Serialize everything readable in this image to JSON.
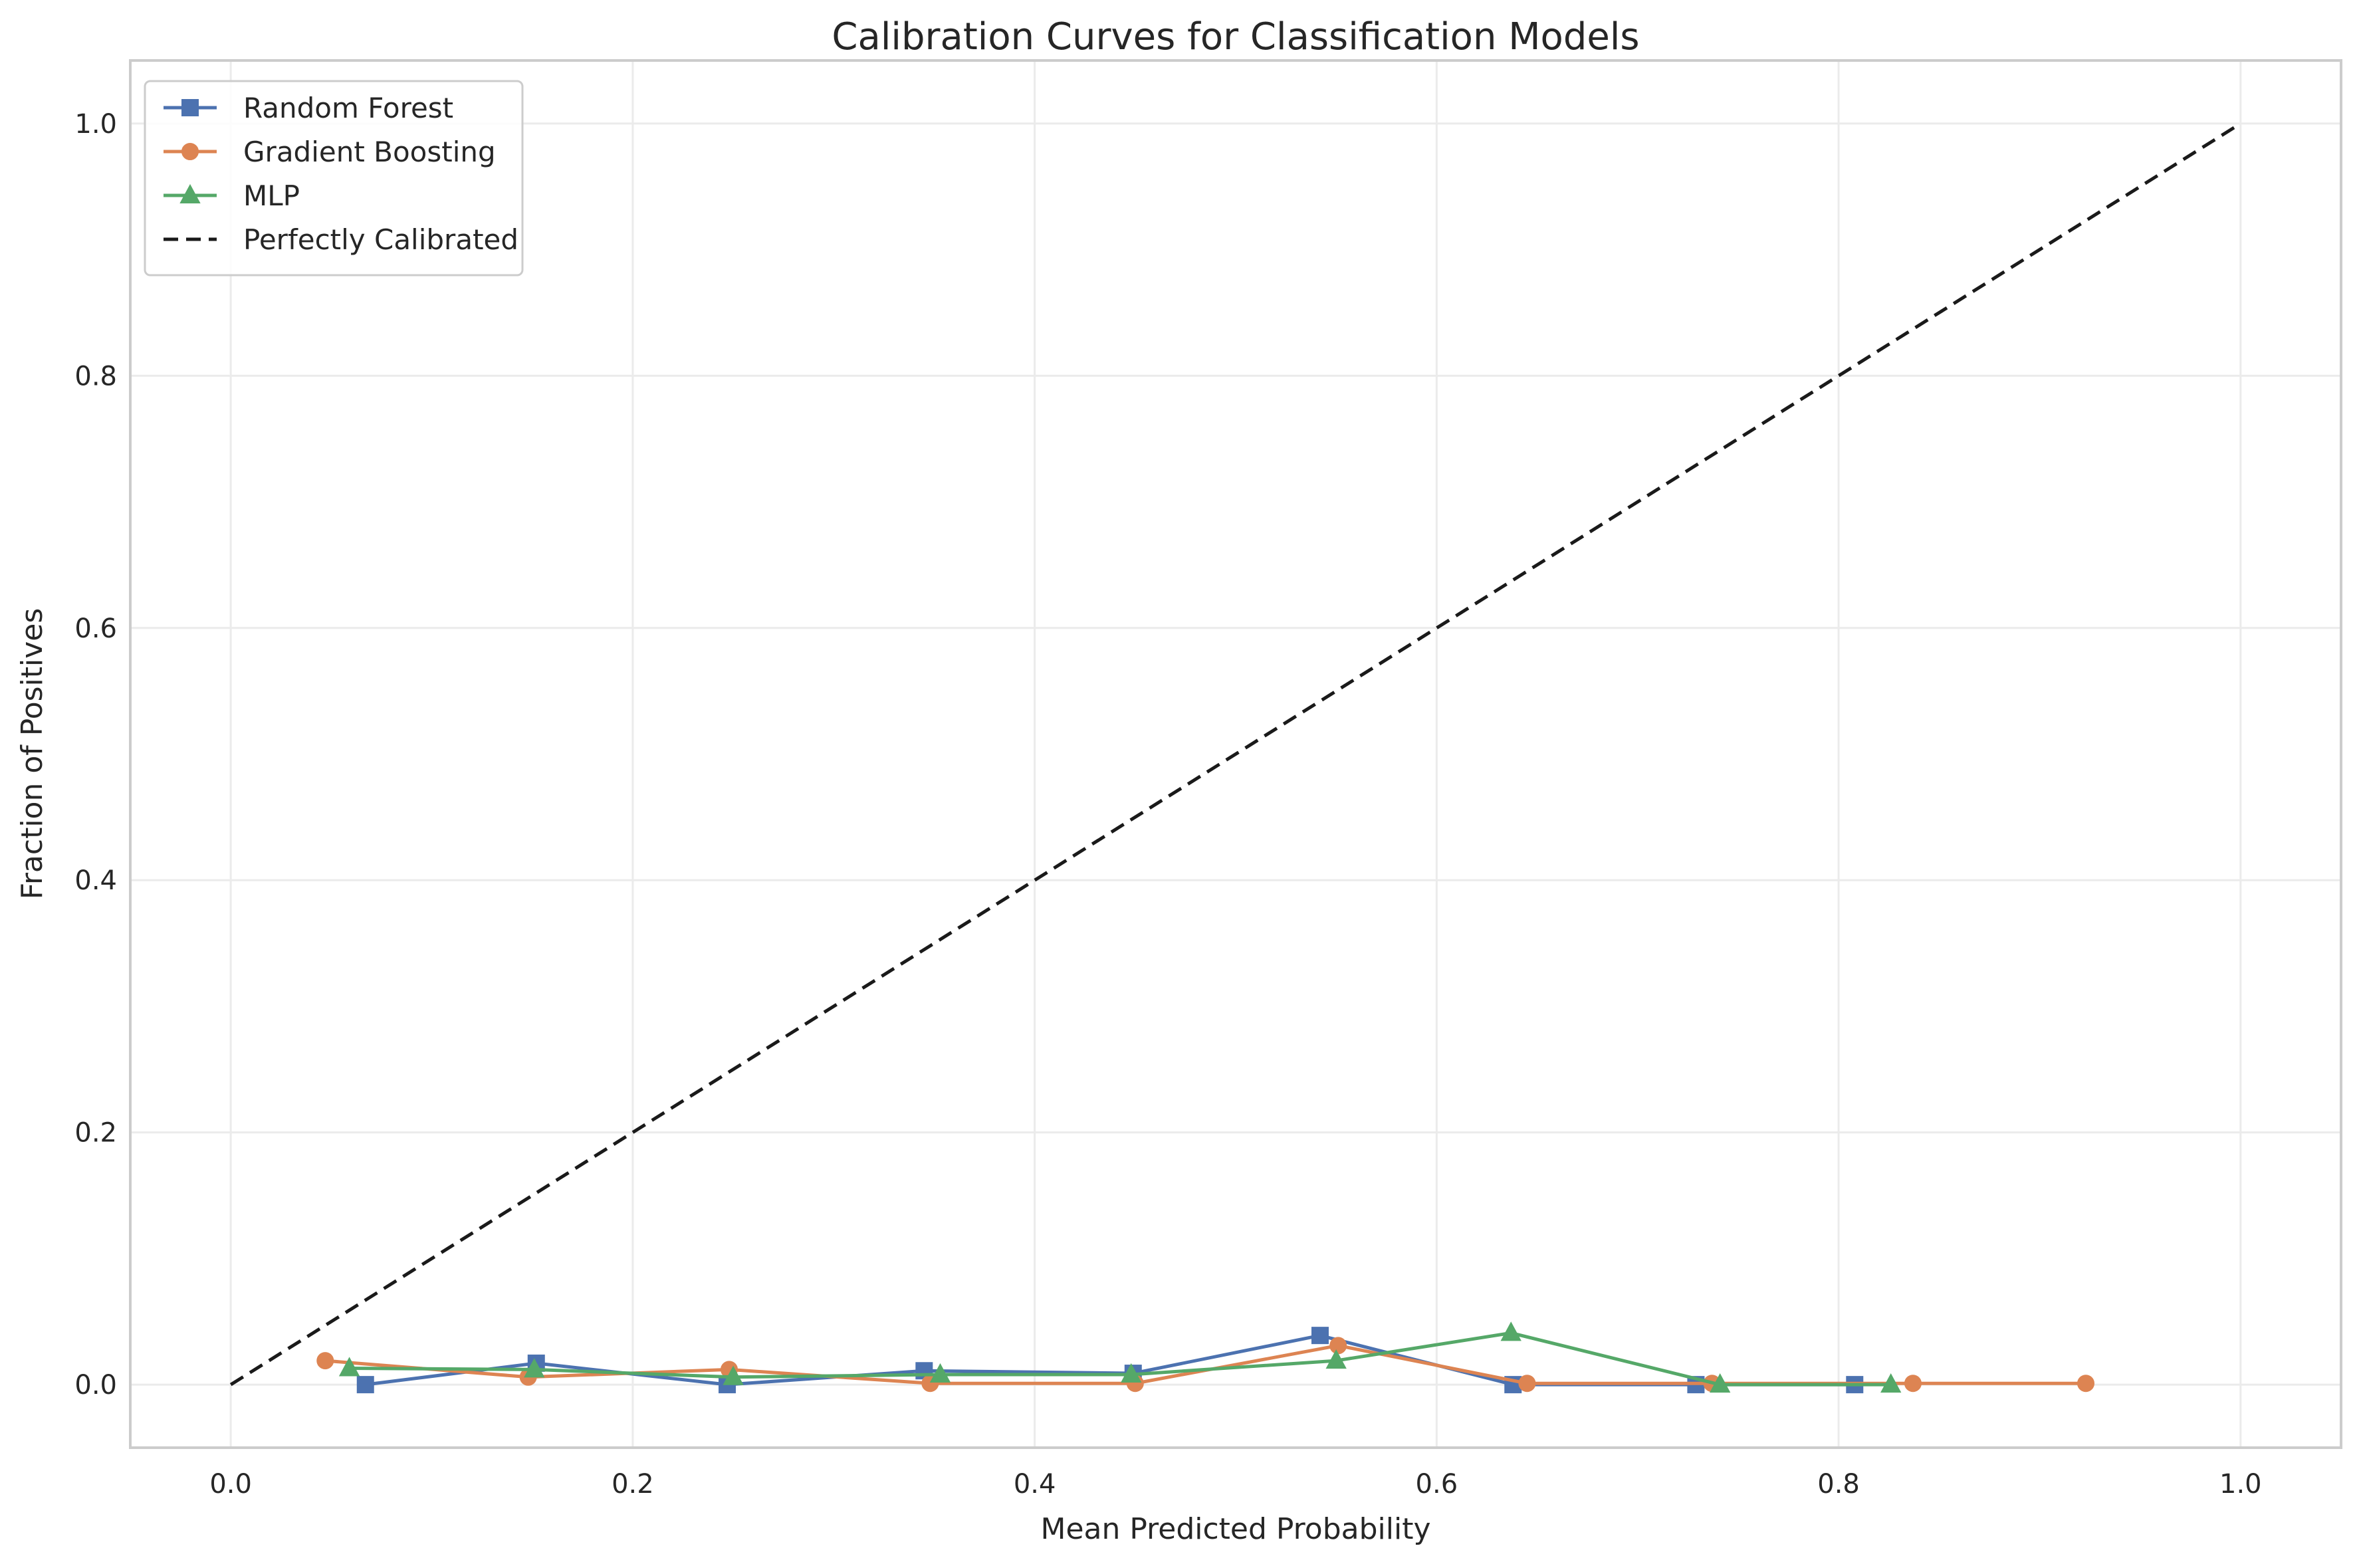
{
  "chart_data": {
    "type": "line",
    "title": "Calibration Curves for Classification Models",
    "xlabel": "Mean Predicted Probability",
    "ylabel": "Fraction of Positives",
    "xlim": [
      -0.05,
      1.05
    ],
    "ylim": [
      -0.05,
      1.05
    ],
    "xticks": [
      0.0,
      0.2,
      0.4,
      0.6,
      0.8,
      1.0
    ],
    "xtick_labels": [
      "0.0",
      "0.2",
      "0.4",
      "0.6",
      "0.8",
      "1.0"
    ],
    "yticks": [
      0.0,
      0.2,
      0.4,
      0.6,
      0.8,
      1.0
    ],
    "ytick_labels": [
      "0.0",
      "0.2",
      "0.4",
      "0.6",
      "0.8",
      "1.0"
    ],
    "grid": true,
    "legend_position": "top-left",
    "series": [
      {
        "name": "Random Forest",
        "color": "#4c72b0",
        "marker": "square",
        "line_style": "solid",
        "x": [
          0.067,
          0.152,
          0.247,
          0.345,
          0.449,
          0.542,
          0.638,
          0.729,
          0.808
        ],
        "y": [
          0.0,
          0.017,
          0.0,
          0.011,
          0.009,
          0.039,
          0.0,
          0.0,
          0.0
        ]
      },
      {
        "name": "Gradient Boosting",
        "color": "#dd8452",
        "marker": "circle",
        "line_style": "solid",
        "x": [
          0.047,
          0.148,
          0.248,
          0.348,
          0.45,
          0.551,
          0.645,
          0.737,
          0.837,
          0.923
        ],
        "y": [
          0.019,
          0.006,
          0.012,
          0.001,
          0.001,
          0.031,
          0.001,
          0.001,
          0.001,
          0.001
        ]
      },
      {
        "name": "MLP",
        "color": "#55a868",
        "marker": "triangle",
        "line_style": "solid",
        "x": [
          0.059,
          0.151,
          0.25,
          0.353,
          0.448,
          0.55,
          0.637,
          0.741,
          0.826
        ],
        "y": [
          0.013,
          0.012,
          0.006,
          0.008,
          0.008,
          0.019,
          0.041,
          0.0,
          0.0
        ]
      },
      {
        "name": "Perfectly Calibrated",
        "color": "#1a1a1a",
        "marker": "none",
        "line_style": "dashed",
        "x": [
          0.0,
          1.0
        ],
        "y": [
          0.0,
          1.0
        ]
      }
    ]
  }
}
